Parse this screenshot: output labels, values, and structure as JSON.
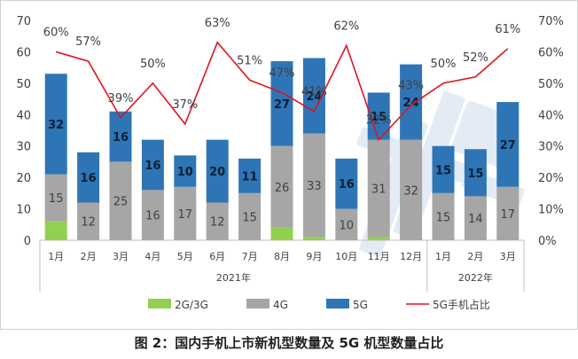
{
  "chart_data": {
    "type": "bar",
    "categories": [
      "1月",
      "2月",
      "3月",
      "4月",
      "5月",
      "6月",
      "7月",
      "8月",
      "9月",
      "10月",
      "11月",
      "12月",
      "1月",
      "2月",
      "3月"
    ],
    "year_groups": [
      {
        "label": "2021年",
        "from": 0,
        "to": 11
      },
      {
        "label": "2022年",
        "from": 12,
        "to": 14
      }
    ],
    "series": [
      {
        "name": "2G/3G",
        "color": "#92d050",
        "values": [
          6,
          0,
          0,
          0,
          0,
          0,
          0,
          4,
          1,
          0,
          1,
          0,
          0,
          0,
          0
        ]
      },
      {
        "name": "4G",
        "color": "#a6a6a6",
        "values": [
          15,
          12,
          25,
          16,
          17,
          12,
          15,
          26,
          33,
          10,
          31,
          32,
          15,
          14,
          17
        ]
      },
      {
        "name": "5G",
        "color": "#2e75b6",
        "values": [
          32,
          16,
          16,
          16,
          10,
          20,
          11,
          27,
          24,
          16,
          15,
          24,
          15,
          15,
          27
        ]
      }
    ],
    "line": {
      "name": "5G手机占比",
      "color": "#e0141e",
      "values": [
        60,
        57,
        39,
        50,
        37,
        63,
        51,
        47,
        41,
        62,
        32,
        43,
        50,
        52,
        61
      ],
      "labels": [
        "60%",
        "57%",
        "39%",
        "50%",
        "37%",
        "63%",
        "51%",
        "47%",
        "41%",
        "62%",
        "32%",
        "43%",
        "50%",
        "52%",
        "61%"
      ]
    },
    "ylim": [
      0,
      70
    ],
    "yticks": [
      "0",
      "10",
      "20",
      "30",
      "40",
      "50",
      "60",
      "70"
    ],
    "ylim_right": [
      0,
      70
    ],
    "yticks_right": [
      "0%",
      "10%",
      "20%",
      "30%",
      "40%",
      "50%",
      "60%",
      "70%"
    ],
    "legend_position": "bottom"
  },
  "caption": "图 2：国内手机上市新机型数量及 5G 机型数量占比"
}
